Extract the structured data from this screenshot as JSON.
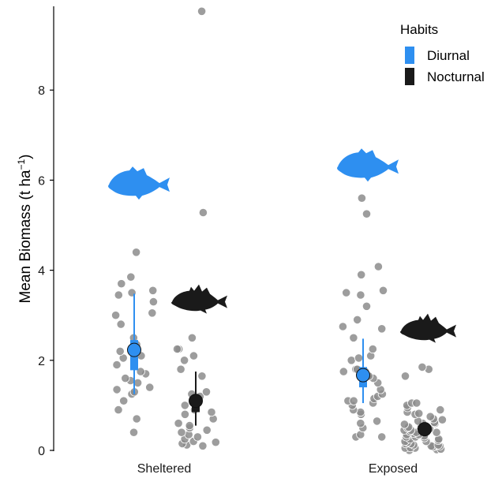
{
  "chart_data": {
    "type": "scatter",
    "ylabel": "Mean Biomass (t ha",
    "ylabel_sup": "−1",
    "ylabel_close": ")",
    "ylim": [
      0,
      9.75
    ],
    "yticks": [
      "0",
      "2",
      "4",
      "6",
      "8"
    ],
    "categories": [
      "Sheltered",
      "Exposed"
    ],
    "legend": {
      "title": "Habits",
      "position": "top-right",
      "entries": [
        {
          "name": "Diurnal",
          "color": "#2e8ff0"
        },
        {
          "name": "Nocturnal",
          "color": "#1a1a1a"
        }
      ]
    },
    "groups": [
      {
        "category": "Sheltered",
        "habit": "Diurnal",
        "color": "#2e8ff0",
        "mean": 2.23,
        "ci_outer": [
          1.25,
          3.48
        ],
        "ci_inner": [
          1.78,
          2.45
        ],
        "icon_y": 5.9,
        "points": [
          0.4,
          0.7,
          0.9,
          1.1,
          1.25,
          1.3,
          1.35,
          1.4,
          1.5,
          1.55,
          1.6,
          1.7,
          1.75,
          1.9,
          2.0,
          2.05,
          2.1,
          2.2,
          2.35,
          2.5,
          2.8,
          3.0,
          3.05,
          3.3,
          3.45,
          3.5,
          3.55,
          3.7,
          3.85,
          4.4
        ]
      },
      {
        "category": "Sheltered",
        "habit": "Nocturnal",
        "color": "#1a1a1a",
        "mean": 1.1,
        "ci_outer": [
          0.55,
          1.75
        ],
        "ci_inner": [
          0.85,
          1.2
        ],
        "icon_y": 3.3,
        "points": [
          0.1,
          0.12,
          0.15,
          0.18,
          0.2,
          0.25,
          0.3,
          0.35,
          0.4,
          0.45,
          0.5,
          0.55,
          0.6,
          0.7,
          0.8,
          0.85,
          0.9,
          1.0,
          1.2,
          1.25,
          1.3,
          1.65,
          1.8,
          2.0,
          2.1,
          2.25,
          2.25,
          2.5,
          5.28,
          9.75
        ]
      },
      {
        "category": "Exposed",
        "habit": "Diurnal",
        "color": "#2e8ff0",
        "mean": 1.67,
        "ci_outer": [
          1.05,
          2.48
        ],
        "ci_inner": [
          1.4,
          1.85
        ],
        "icon_y": 6.3,
        "points": [
          0.3,
          0.3,
          0.35,
          0.5,
          0.6,
          0.65,
          0.8,
          0.85,
          0.9,
          1.0,
          1.05,
          1.1,
          1.1,
          1.15,
          1.2,
          1.25,
          1.35,
          1.5,
          1.6,
          1.65,
          1.75,
          1.75,
          1.8,
          1.8,
          2.0,
          2.05,
          2.1,
          2.25,
          2.5,
          2.7,
          2.75,
          2.9,
          3.2,
          3.45,
          3.5,
          3.55,
          3.9,
          4.08,
          5.25,
          5.6
        ]
      },
      {
        "category": "Exposed",
        "habit": "Nocturnal",
        "color": "#1a1a1a",
        "mean": 0.47,
        "ci_outer": [
          0.4,
          0.55
        ],
        "ci_inner": [
          0.43,
          0.5
        ],
        "icon_y": 2.65,
        "points": [
          0.0,
          0.02,
          0.03,
          0.05,
          0.05,
          0.06,
          0.08,
          0.08,
          0.1,
          0.1,
          0.12,
          0.12,
          0.15,
          0.15,
          0.18,
          0.2,
          0.2,
          0.22,
          0.25,
          0.25,
          0.28,
          0.3,
          0.3,
          0.32,
          0.35,
          0.35,
          0.38,
          0.4,
          0.4,
          0.42,
          0.45,
          0.45,
          0.48,
          0.5,
          0.5,
          0.52,
          0.55,
          0.55,
          0.58,
          0.6,
          0.6,
          0.62,
          0.65,
          0.68,
          0.7,
          0.75,
          0.8,
          0.82,
          0.85,
          0.9,
          0.95,
          1.0,
          1.05,
          1.05,
          1.65,
          1.8,
          1.85
        ]
      }
    ]
  }
}
